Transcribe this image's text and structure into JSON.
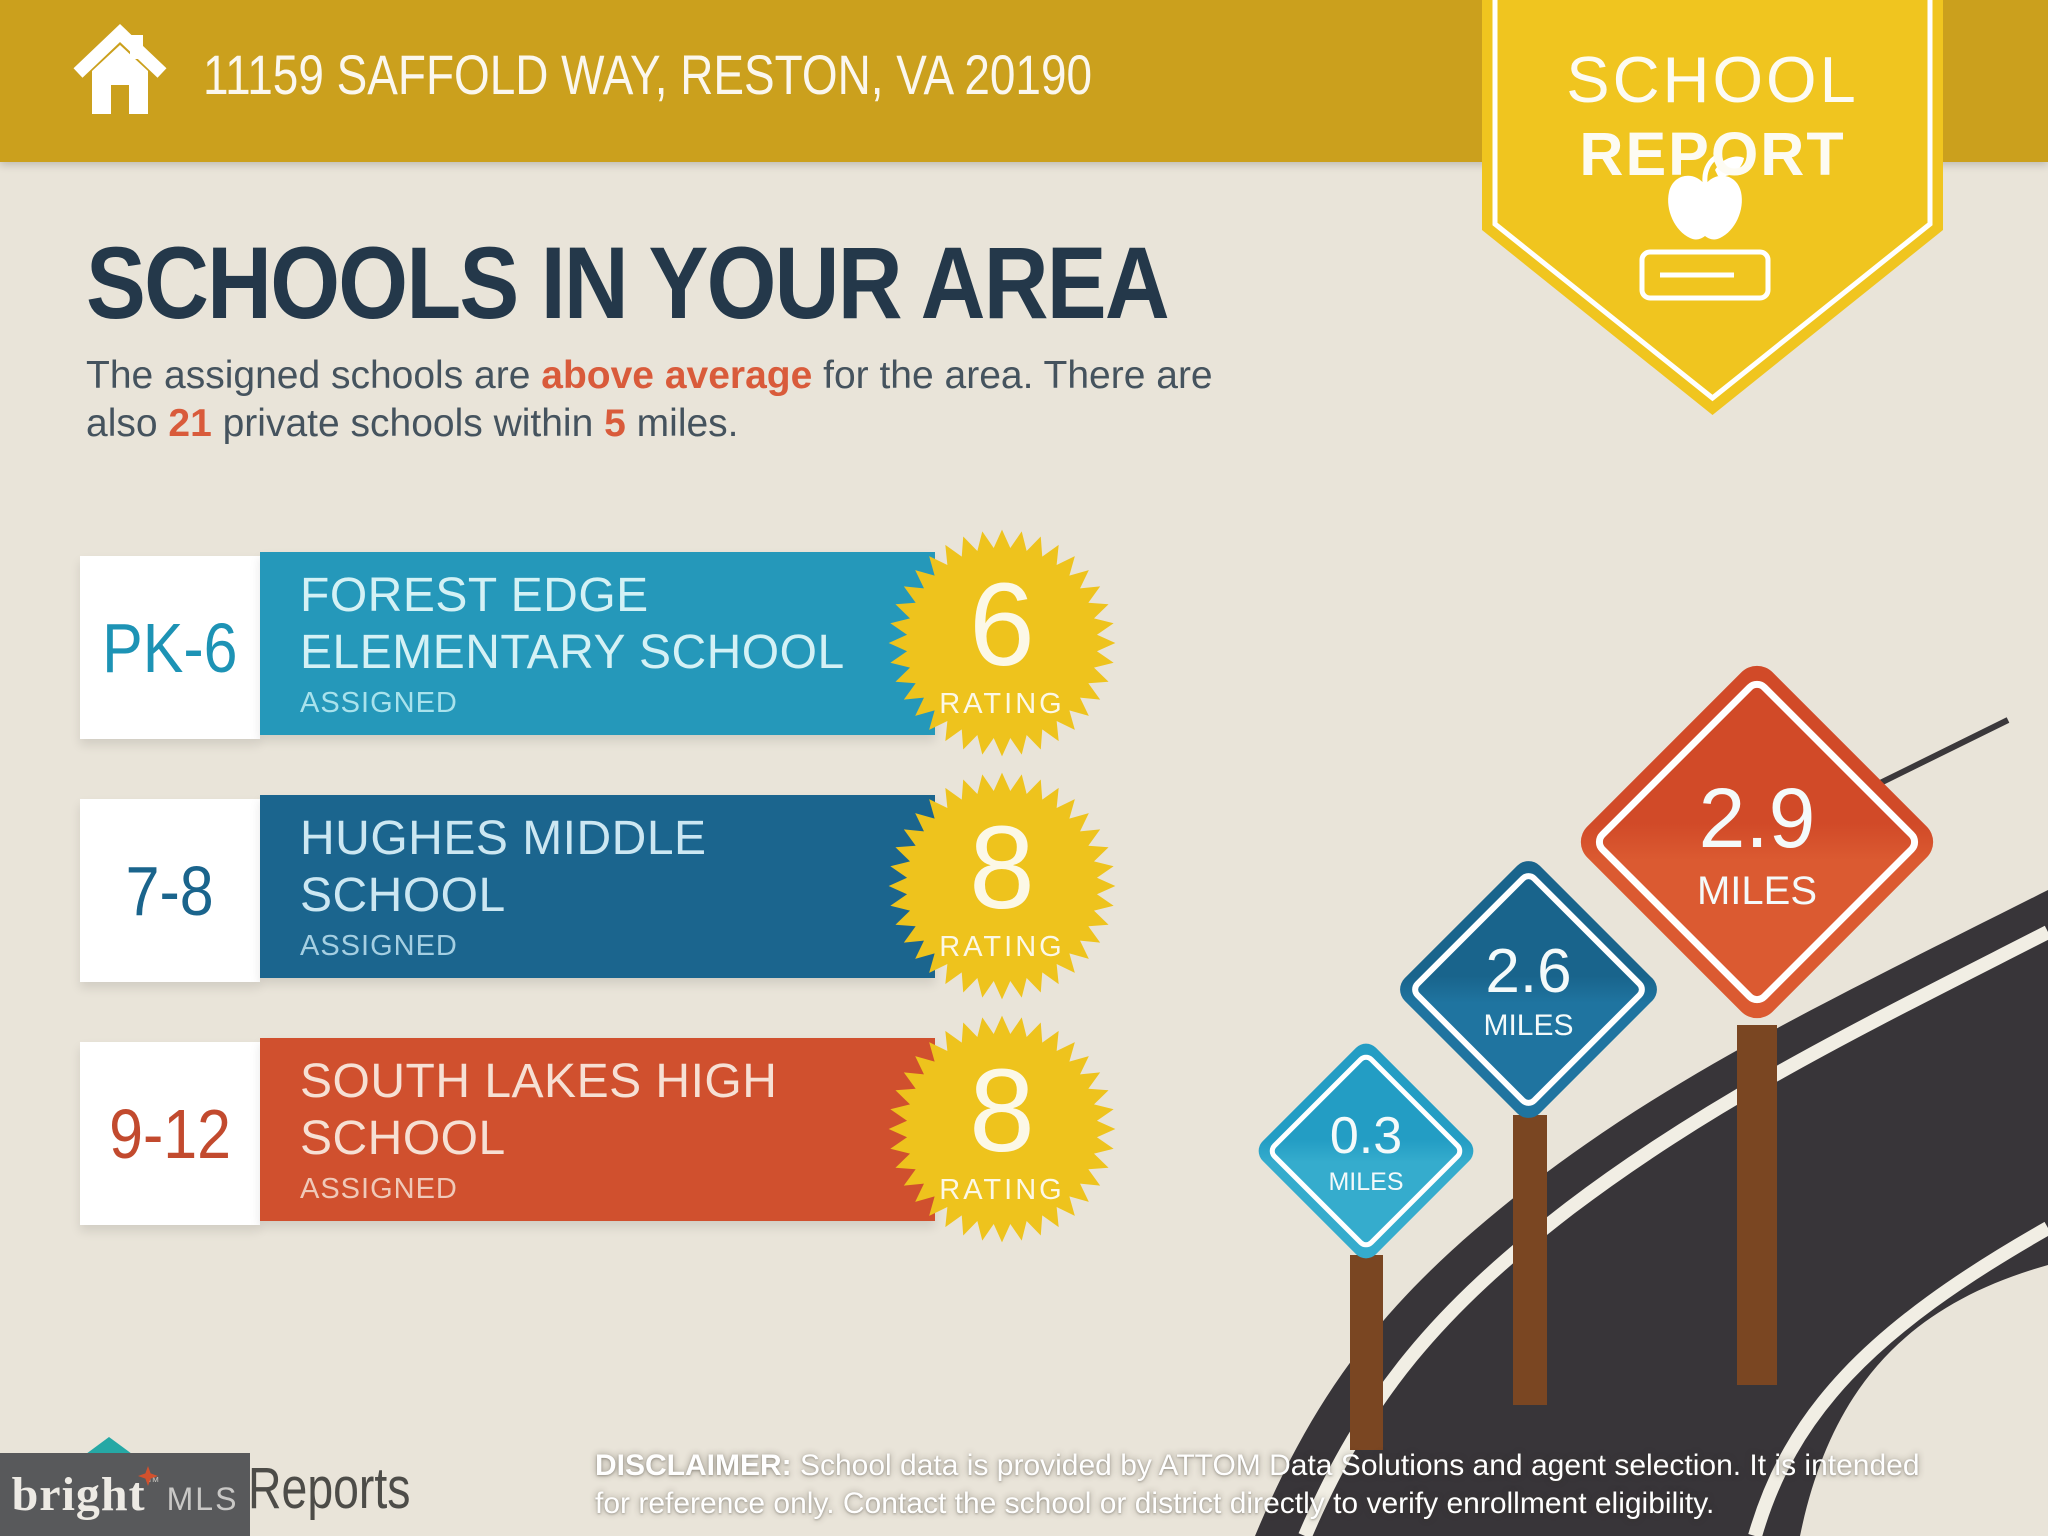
{
  "topbar": {
    "address": "11159 SAFFOLD WAY, RESTON, VA 20190"
  },
  "badge": {
    "line1": "SCHOOL",
    "line2": "REPORT"
  },
  "intro": {
    "title": "SCHOOLS IN YOUR AREA",
    "sub_p1": "The assigned schools are ",
    "sub_hl1": "above average",
    "sub_p2": " for the area. There are",
    "sub_p3": "also ",
    "sub_hl2": "21",
    "sub_p4": " private schools within ",
    "sub_hl3": "5",
    "sub_p5": " miles."
  },
  "schools": [
    {
      "grades": "PK-6",
      "name": "FOREST EDGE ELEMENTARY SCHOOL",
      "status": "ASSIGNED",
      "rating": "6",
      "rating_label": "RATING",
      "bar_color": "#2598BA"
    },
    {
      "grades": "7-8",
      "name": "HUGHES MIDDLE SCHOOL",
      "status": "ASSIGNED",
      "rating": "8",
      "rating_label": "RATING",
      "bar_color": "#1B658E"
    },
    {
      "grades": "9-12",
      "name": "SOUTH LAKES HIGH SCHOOL",
      "status": "ASSIGNED",
      "rating": "8",
      "rating_label": "RATING",
      "bar_color": "#D0502E"
    }
  ],
  "signs": [
    {
      "value": "0.3",
      "unit": "MILES",
      "color": "#2BA8CD"
    },
    {
      "value": "2.6",
      "unit": "MILES",
      "color": "#1C6E99"
    },
    {
      "value": "2.9",
      "unit": "MILES",
      "color": "#D5502D"
    }
  ],
  "footer": {
    "logo_brand": "bright",
    "logo_tm": "™",
    "logo_suffix": "MLS",
    "partial_text": "Reports",
    "disclaimer_bold": "DISCLAIMER:",
    "disclaimer_line1": " School data is provided by ATTOM Data Solutions and agent selection. It is intended",
    "disclaimer_line2": "for reference only. Contact the school or district directly to verify enrollment eligibility."
  },
  "colors": {
    "topbar_gold": "#CBA01D",
    "badge_yellow": "#F0C51F",
    "background_beige": "#E9E4D9",
    "heading_navy": "#24384A",
    "accent_orange": "#D95B3B",
    "starburst_yellow": "#EEC31D",
    "road_charcoal": "#383539",
    "post_brown": "#7A4622",
    "logo_box_gray": "#58595B"
  }
}
